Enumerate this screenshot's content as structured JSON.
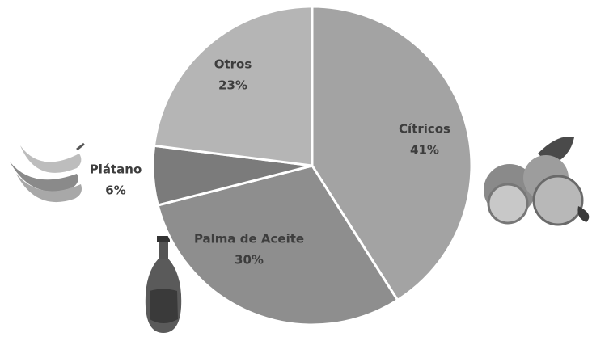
{
  "chart_data": {
    "type": "pie",
    "categories": [
      "Cítricos",
      "Palma de Aceite",
      "Plátano",
      "Otros"
    ],
    "values": [
      41,
      30,
      6,
      23
    ],
    "value_labels": [
      "41%",
      "30%",
      "6%",
      "23%"
    ],
    "colors": [
      "#a3a3a3",
      "#8e8e8e",
      "#7b7b7b",
      "#b5b5b5"
    ]
  }
}
